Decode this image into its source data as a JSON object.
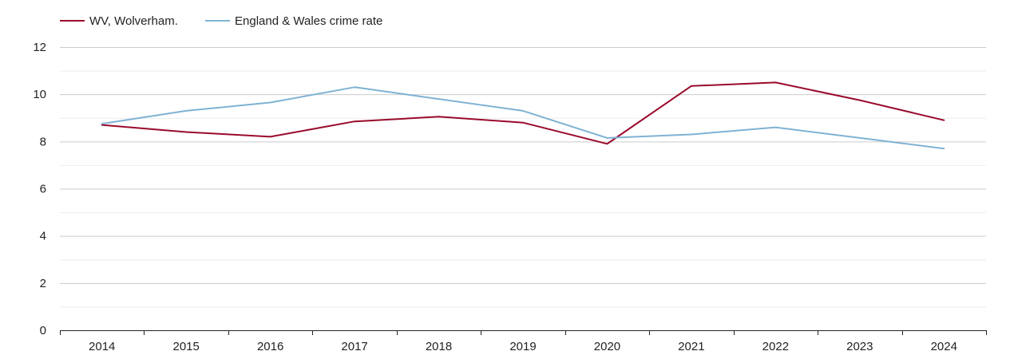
{
  "chart_data": {
    "type": "line",
    "categories": [
      "2014",
      "2015",
      "2016",
      "2017",
      "2018",
      "2019",
      "2020",
      "2021",
      "2022",
      "2023",
      "2024"
    ],
    "series": [
      {
        "name": "WV, Wolverham.",
        "color": "#9a0a2b",
        "values": [
          8.7,
          8.4,
          8.2,
          8.85,
          9.05,
          8.8,
          7.9,
          10.35,
          10.5,
          9.75,
          8.9
        ]
      },
      {
        "name": "England & Wales crime rate",
        "color": "#7fb2d3",
        "values": [
          8.75,
          9.3,
          9.65,
          10.3,
          9.8,
          9.3,
          8.15,
          8.3,
          8.6,
          8.15,
          7.7
        ]
      }
    ],
    "yticks": [
      "0",
      "2",
      "4",
      "6",
      "8",
      "10",
      "12"
    ],
    "ylim": [
      0,
      12
    ],
    "grid": true,
    "legend_position": "top-left",
    "title": "",
    "xlabel": "",
    "ylabel": ""
  }
}
